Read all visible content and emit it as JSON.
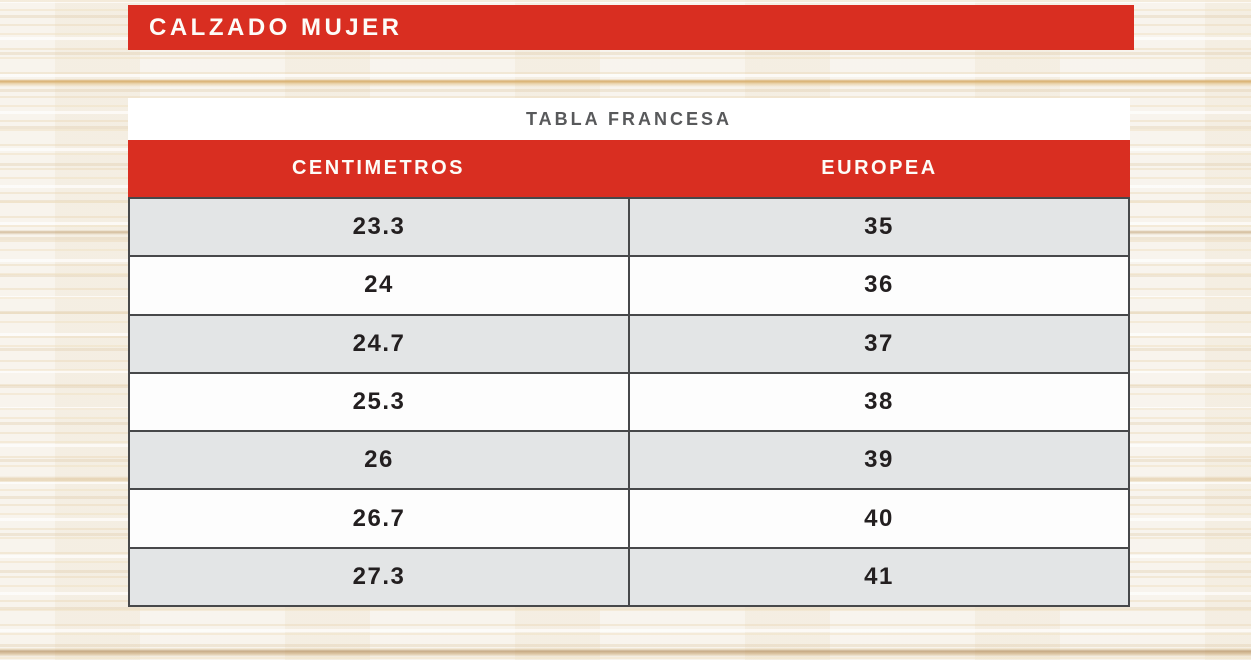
{
  "page": {
    "banner": {
      "title": "CALZADO MUJER"
    },
    "table": {
      "subtitle": "TABLA FRANCESA",
      "columns": [
        "CENTIMETROS",
        "EUROPEA"
      ],
      "rows": [
        [
          "23.3",
          "35"
        ],
        [
          "24",
          "36"
        ],
        [
          "24.7",
          "37"
        ],
        [
          "25.3",
          "38"
        ],
        [
          "26",
          "39"
        ],
        [
          "26.7",
          "40"
        ],
        [
          "27.3",
          "41"
        ]
      ]
    }
  },
  "colors": {
    "accent_red": "#d92e21",
    "header_text": "#fdfcf8",
    "subtitle_gray": "#58595b",
    "row_alt_gray": "#e3e5e6",
    "row_white": "#fdfdfd",
    "grid_border": "#47484a",
    "value_text": "#231f20",
    "wood_base": "#f6f1e8"
  },
  "chart_data": {
    "type": "table",
    "title": "CALZADO MUJER",
    "subtitle": "TABLA FRANCESA",
    "columns": [
      "CENTIMETROS",
      "EUROPEA"
    ],
    "rows": [
      [
        23.3,
        35
      ],
      [
        24,
        36
      ],
      [
        24.7,
        37
      ],
      [
        25.3,
        38
      ],
      [
        26,
        39
      ],
      [
        26.7,
        40
      ],
      [
        27.3,
        41
      ]
    ],
    "layout_hints": {
      "striped_rows": true,
      "header_background": "#d92e21",
      "values_centered": true
    }
  }
}
